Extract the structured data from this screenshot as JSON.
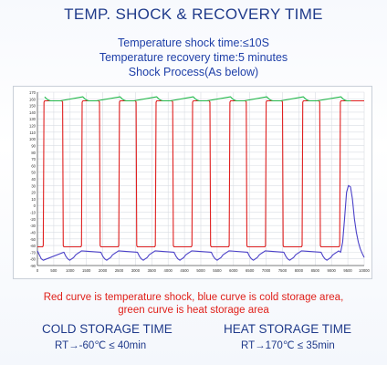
{
  "header": {
    "title": "TEMP. SHOCK & RECOVERY TIME",
    "line1": "Temperature shock time:≤10S",
    "line2": "Temperature recovery time:5 minutes",
    "line3": "Shock Process(As below)"
  },
  "chart_data": {
    "type": "line",
    "y_ticks": [
      170,
      160,
      150,
      140,
      130,
      120,
      110,
      100,
      90,
      80,
      70,
      60,
      50,
      40,
      30,
      20,
      10,
      0,
      -10,
      -20,
      -30,
      -40,
      -50,
      -60,
      -70,
      -80,
      -90
    ],
    "x_ticks": [
      "0",
      "500",
      "1000",
      "1500",
      "2000",
      "2500",
      "3000",
      "3500",
      "4000",
      "4500",
      "5000",
      "5500",
      "6000",
      "6500",
      "7000",
      "7500",
      "8000",
      "8500",
      "9000",
      "9500",
      "10000"
    ],
    "ylim": [
      -90,
      170
    ],
    "xlim": [
      0,
      10000
    ],
    "grid": true,
    "colors": {
      "shock": "#e02020",
      "cold": "#4a40c8",
      "heat": "#22b84a"
    },
    "series": [
      {
        "color": "red",
        "x": [
          0,
          160,
          180,
          200,
          220,
          750,
          770,
          790,
          810,
          1330,
          1350,
          1370,
          1390,
          1880,
          1900,
          1920,
          1940,
          2470,
          2490,
          2510,
          2530,
          3000,
          3020,
          3040,
          3060,
          3590,
          3610,
          3630,
          3650,
          4120,
          4140,
          4160,
          4180,
          4710,
          4730,
          4750,
          4770,
          5260,
          5280,
          5300,
          5320,
          5850,
          5870,
          5890,
          5910,
          6370,
          6390,
          6410,
          6430,
          6960,
          6980,
          7000,
          7020,
          7480,
          7500,
          7520,
          7540,
          8080,
          8100,
          8120,
          8140,
          8620,
          8640,
          8660,
          8680,
          9230,
          9250,
          9270,
          9290,
          10000
        ],
        "y": [
          -62,
          -62,
          -60,
          155,
          157,
          157,
          155,
          -60,
          -62,
          -62,
          -60,
          155,
          157,
          157,
          155,
          -60,
          -62,
          -62,
          -60,
          155,
          157,
          157,
          155,
          -60,
          -62,
          -62,
          -60,
          155,
          157,
          157,
          155,
          -60,
          -62,
          -62,
          -60,
          155,
          157,
          157,
          155,
          -60,
          -62,
          -62,
          -60,
          155,
          157,
          157,
          155,
          -60,
          -62,
          -62,
          -60,
          155,
          157,
          157,
          155,
          -60,
          -62,
          -62,
          -60,
          155,
          157,
          157,
          155,
          -60,
          -62,
          -62,
          -60,
          155,
          157,
          157
        ]
      },
      {
        "color": "blue",
        "x": [
          0,
          60,
          120,
          180,
          810,
          870,
          930,
          990,
          1050,
          1110,
          1170,
          1230,
          1290,
          1350,
          1940,
          2000,
          2060,
          2120,
          2180,
          2240,
          2300,
          2360,
          2420,
          2480,
          3060,
          3120,
          3180,
          3240,
          3300,
          3360,
          3420,
          3480,
          3540,
          3600,
          4180,
          4240,
          4300,
          4360,
          4420,
          4480,
          4540,
          4600,
          4660,
          4720,
          5320,
          5380,
          5440,
          5500,
          5560,
          5620,
          5680,
          5740,
          5800,
          5860,
          6430,
          6490,
          6550,
          6610,
          6670,
          6730,
          6790,
          6850,
          6910,
          6970,
          7540,
          7600,
          7660,
          7720,
          7780,
          7840,
          7900,
          7960,
          8020,
          8080,
          8680,
          8740,
          8800,
          8860,
          8920,
          8980,
          9040,
          9100,
          9160,
          9220,
          9280,
          9340,
          9400,
          9460,
          9520,
          9580,
          9640,
          9700,
          9760,
          9820,
          9880,
          9940,
          10000
        ],
        "y": [
          -68,
          -74,
          -80,
          -82,
          -70,
          -76,
          -80,
          -82,
          -80,
          -78,
          -74,
          -72,
          -70,
          -68,
          -70,
          -76,
          -80,
          -82,
          -80,
          -78,
          -74,
          -72,
          -70,
          -68,
          -70,
          -76,
          -80,
          -82,
          -80,
          -78,
          -74,
          -72,
          -70,
          -68,
          -70,
          -76,
          -80,
          -82,
          -80,
          -78,
          -74,
          -72,
          -70,
          -68,
          -70,
          -76,
          -80,
          -82,
          -80,
          -78,
          -74,
          -72,
          -70,
          -68,
          -70,
          -76,
          -80,
          -82,
          -80,
          -78,
          -74,
          -72,
          -70,
          -68,
          -70,
          -76,
          -80,
          -82,
          -80,
          -78,
          -74,
          -72,
          -70,
          -68,
          -70,
          -76,
          -80,
          -82,
          -80,
          -78,
          -74,
          -72,
          -70,
          -68,
          -70,
          -55,
          -20,
          20,
          30,
          28,
          10,
          -20,
          -40,
          -55,
          -65,
          -72,
          -78
        ]
      },
      {
        "color": "green",
        "x": [
          220,
          280,
          340,
          400,
          460,
          520,
          580,
          640,
          700,
          1390,
          1450,
          1510,
          1570,
          1630,
          1690,
          1750,
          1810,
          2530,
          2590,
          2650,
          2710,
          2770,
          2830,
          2890,
          2950,
          3650,
          3710,
          3770,
          3830,
          3890,
          3950,
          4010,
          4070,
          4770,
          4830,
          4890,
          4950,
          5010,
          5070,
          5130,
          5190,
          5910,
          5970,
          6030,
          6090,
          6150,
          6210,
          6270,
          6330,
          7020,
          7080,
          7140,
          7200,
          7260,
          7320,
          7380,
          7440,
          8140,
          8200,
          8260,
          8320,
          8380,
          8440,
          8500,
          8560,
          9290,
          9350,
          9410,
          9470,
          9530,
          9590
        ],
        "y": [
          163,
          160,
          158,
          157,
          157,
          157,
          157,
          157,
          157,
          163,
          160,
          158,
          157,
          157,
          157,
          157,
          157,
          163,
          160,
          158,
          157,
          157,
          157,
          157,
          157,
          163,
          160,
          158,
          157,
          157,
          157,
          157,
          157,
          163,
          160,
          158,
          157,
          157,
          157,
          157,
          157,
          163,
          160,
          158,
          157,
          157,
          157,
          157,
          157,
          163,
          160,
          158,
          157,
          157,
          157,
          157,
          157,
          163,
          160,
          158,
          157,
          157,
          157,
          157,
          157,
          163,
          160,
          158,
          157,
          157,
          157
        ]
      }
    ]
  },
  "caption": {
    "line1": "Red curve is temperature shock, blue curve is cold storage area,",
    "line2": "green curve is heat storage area"
  },
  "storage": {
    "cold_title": "COLD STORAGE TIME",
    "cold_value": "RT→-60℃ ≤ 40min",
    "heat_title": "HEAT STORAGE TIME",
    "heat_value": "RT→170℃ ≤ 35min"
  }
}
